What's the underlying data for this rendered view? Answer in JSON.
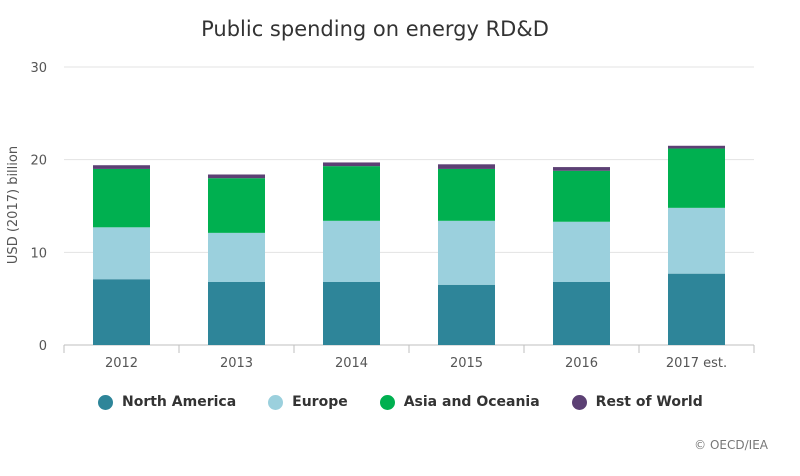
{
  "chart_data": {
    "type": "bar",
    "stacked": true,
    "title": "Public spending on energy RD&D",
    "xlabel": "",
    "ylabel": "USD (2017) billion",
    "ylim": [
      0,
      30
    ],
    "yticks": [
      0,
      10,
      20,
      30
    ],
    "grid": true,
    "legend_position": "bottom",
    "categories": [
      "2012",
      "2013",
      "2014",
      "2015",
      "2016",
      "2017 est."
    ],
    "series": [
      {
        "name": "North America",
        "color": "#2e8599",
        "values": [
          7.1,
          6.8,
          6.8,
          6.5,
          6.8,
          7.7
        ]
      },
      {
        "name": "Europe",
        "color": "#9bd0dd",
        "values": [
          5.6,
          5.3,
          6.6,
          6.9,
          6.5,
          7.1
        ]
      },
      {
        "name": "Asia and Oceania",
        "color": "#00b050",
        "values": [
          6.3,
          5.9,
          5.9,
          5.6,
          5.5,
          6.4
        ]
      },
      {
        "name": "Rest of World",
        "color": "#5c4074",
        "values": [
          0.4,
          0.4,
          0.4,
          0.5,
          0.4,
          0.3
        ]
      }
    ]
  },
  "credit": "© OECD/IEA"
}
